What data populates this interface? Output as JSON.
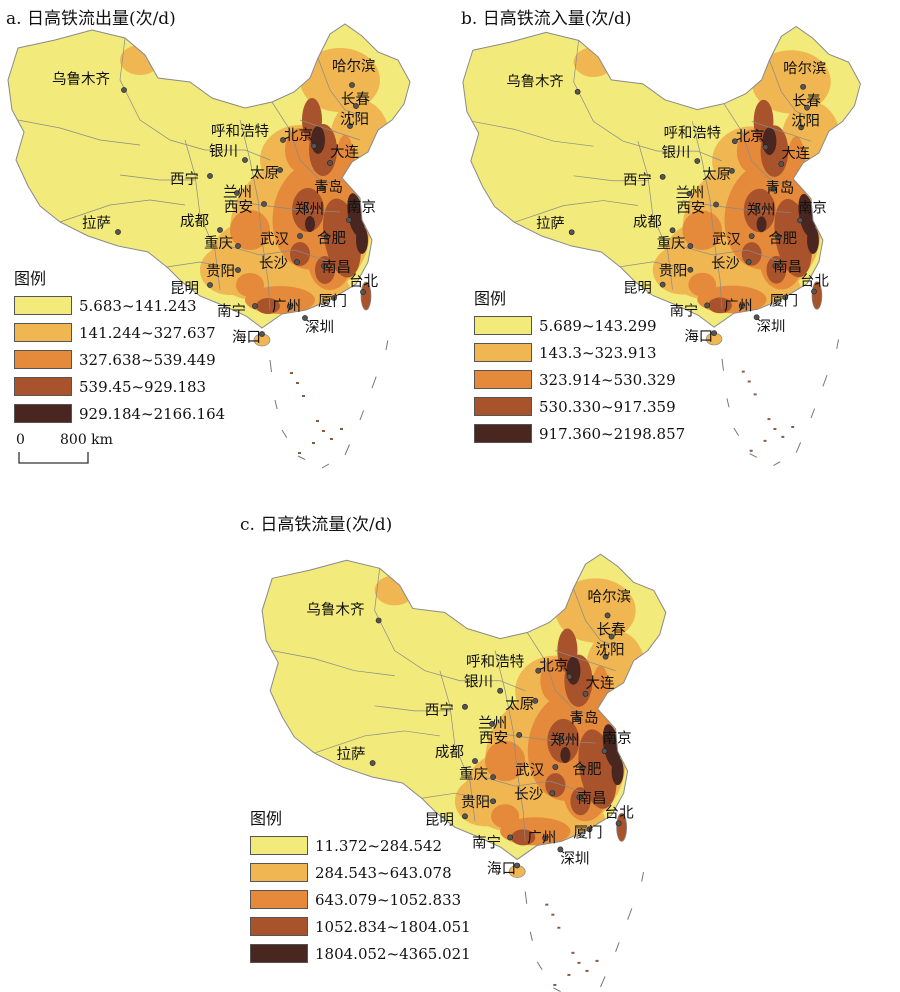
{
  "legend_title": "图例",
  "panels": [
    {
      "id": "a",
      "title": "a. 日高铁流出量(次/d)",
      "legend": [
        {
          "label": "5.683~141.243",
          "color": "#f2ea7a"
        },
        {
          "label": "141.244~327.637",
          "color": "#efb652"
        },
        {
          "label": "327.638~539.449",
          "color": "#e48a3a"
        },
        {
          "label": "539.45~929.183",
          "color": "#a9532c"
        },
        {
          "label": "929.184~2166.164",
          "color": "#4a2620"
        }
      ]
    },
    {
      "id": "b",
      "title": "b. 日高铁流入量(次/d)",
      "legend": [
        {
          "label": "5.689~143.299",
          "color": "#f2ea7a"
        },
        {
          "label": "143.3~323.913",
          "color": "#efb652"
        },
        {
          "label": "323.914~530.329",
          "color": "#e48a3a"
        },
        {
          "label": "530.330~917.359",
          "color": "#a9532c"
        },
        {
          "label": "917.360~2198.857",
          "color": "#4a2620"
        }
      ]
    },
    {
      "id": "c",
      "title": "c. 日高铁流量(次/d)",
      "legend": [
        {
          "label": "11.372~284.542",
          "color": "#f2ea7a"
        },
        {
          "label": "284.543~643.078",
          "color": "#efb652"
        },
        {
          "label": "643.079~1052.833",
          "color": "#e48a3a"
        },
        {
          "label": "1052.834~1804.051",
          "color": "#a9532c"
        },
        {
          "label": "1804.052~4365.021",
          "color": "#4a2620"
        }
      ]
    }
  ],
  "scale_bar": {
    "zero": "0",
    "distance": "800 km"
  },
  "cities": [
    "乌鲁木齐",
    "哈尔滨",
    "长春",
    "沈阳",
    "呼和浩特",
    "北京",
    "大连",
    "银川",
    "太原",
    "西宁",
    "兰州",
    "青岛",
    "西安",
    "郑州",
    "南京",
    "成都",
    "武汉",
    "合肥",
    "拉萨",
    "重庆",
    "长沙",
    "南昌",
    "贵阳",
    "昆明",
    "台北",
    "南宁",
    "广州",
    "厦门",
    "深圳",
    "海口"
  ],
  "colors": {
    "background": "#ffffff",
    "border": "#8a8a8a",
    "city_dot": "#555555"
  }
}
